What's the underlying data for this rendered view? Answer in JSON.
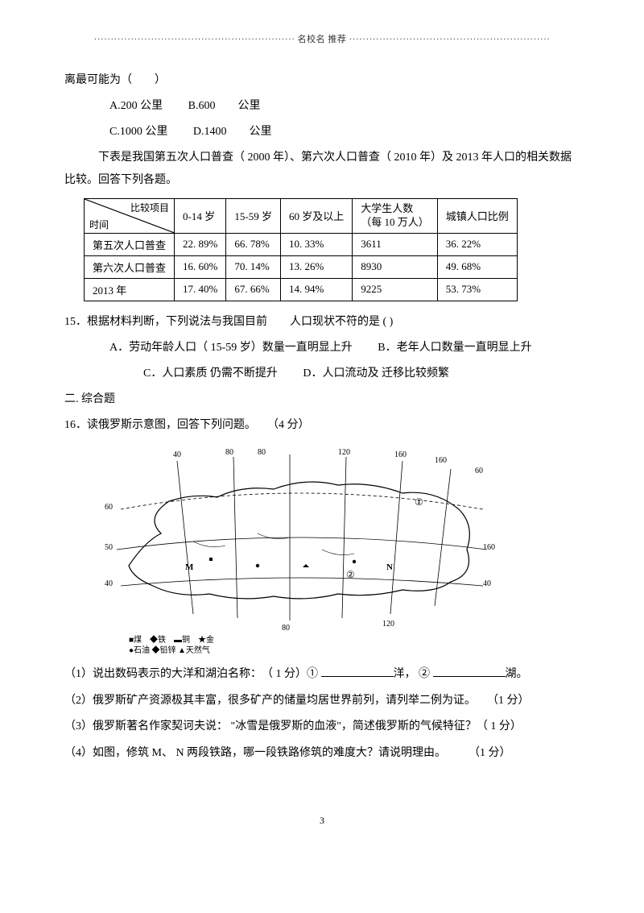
{
  "header": {
    "text": "名校名 推荐"
  },
  "q14": {
    "stem": "离最可能为（　　）",
    "optA": "A.200 公里",
    "optB": "B.600　　公里",
    "optC": "C.1000  公里",
    "optD": "D.1400　　公里"
  },
  "tableIntro": "下表是我国第五次人口普查（ 2000 年）、第六次人口普查（ 2010 年）及 2013 年人口的相关数据比较。回答下列各题。",
  "table": {
    "diagTop": "比较项目",
    "diagBottom": "时间",
    "cols": [
      "0-14 岁",
      "15-59 岁",
      "60 岁及以上",
      "大学生人数（每 10 万人）",
      "城镇人口比例"
    ],
    "rows": [
      {
        "label": "第五次人口普查",
        "cells": [
          "22. 89%",
          "66. 78%",
          "10. 33%",
          "3611",
          "36. 22%"
        ]
      },
      {
        "label": "第六次人口普查",
        "cells": [
          "16. 60%",
          "70. 14%",
          "13. 26%",
          "8930",
          "49. 68%"
        ]
      },
      {
        "label": "2013 年",
        "cells": [
          "17. 40%",
          "67. 66%",
          "14. 94%",
          "9225",
          "53. 73%"
        ]
      }
    ]
  },
  "q15": {
    "stem": "15．根据材料判断，下列说法与我国目前　　人口现状不符的是   (    )",
    "optA": "A．劳动年龄人口（  15-59 岁）数量一直明显上升",
    "optB": "B．老年人口数量一直明显上升",
    "optC": "C．人口素质  仍需不断提升",
    "optD": "D．人口流动及  迁移比较频繁"
  },
  "sec2": "二. 综合题",
  "q16": {
    "stem": "16．读俄罗斯示意图，回答下列问题。　　（4 分）",
    "map": {
      "longitudes": [
        "40",
        "80",
        "80",
        "120",
        "160",
        "160",
        "60"
      ],
      "latitudes_left": [
        "60",
        "50",
        "40"
      ],
      "latitudes_right": [
        "160",
        "40"
      ],
      "bottom": [
        "80",
        "120"
      ],
      "circles": [
        "①",
        "②"
      ],
      "labels": [
        "M",
        "N"
      ],
      "legend": [
        "■煤",
        "◆铁",
        "▬铜",
        "★金",
        "●石油",
        "◆铅锌",
        "▲天然气"
      ]
    },
    "sub1a": "（1）说出数码表示的大洋和湖泊名称：　（ 1 分）① ",
    "sub1b": "洋，   ② ",
    "sub1c": "湖。",
    "sub2": "（2）俄罗斯矿产资源极其丰富，很多矿产的储量均居世界前列，请列举二例为证。　　（1 分）",
    "sub3": "（3）俄罗斯著名作家契诃夫说： \"冰雪是俄罗斯的血液\"，简述俄罗斯的气候特征？（ 1 分）",
    "sub4": "（4）如图，修筑 M、 N 两段铁路，哪一段铁路修筑的难度大？请说明理由。　　　（1 分）"
  },
  "pageNum": "3",
  "style": {
    "text_color": "#000000",
    "bg_color": "#ffffff",
    "font_size_body": 14,
    "font_size_table": 13,
    "font_size_header": 11
  }
}
